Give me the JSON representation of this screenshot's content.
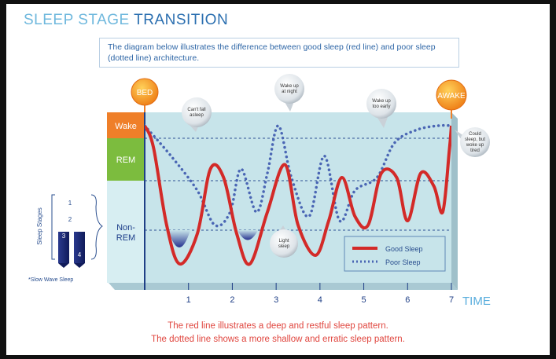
{
  "title": {
    "part1": "SLEEP STAGE",
    "part2": "TRANSITION"
  },
  "description": "The diagram below illustrates the difference between good sleep (red line) and poor sleep (dotted line) architecture.",
  "footer": {
    "line1": "The red line illustrates a deep and restful sleep pattern.",
    "line2": "The dotted line shows a more shallow and erratic sleep pattern."
  },
  "sidebar": {
    "heading": "Sleep Stages",
    "stages": [
      "1",
      "2",
      "3",
      "4"
    ],
    "note": "*Slow Wave Sleep"
  },
  "markers": {
    "bed": "BED",
    "awake": "AWAKE"
  },
  "bubbles": {
    "cant_fall_asleep": [
      "Can't fall",
      "asleep"
    ],
    "wake_up_night": [
      "Wake up",
      "at night"
    ],
    "wake_up_early": [
      "Wake up",
      "too early"
    ],
    "light_sleep": [
      "Light",
      "sleep"
    ],
    "could_sleep": [
      "Could",
      "sleep, but",
      "woke up",
      "tired"
    ]
  },
  "colors": {
    "good": "#d32a28",
    "poor": "#4a66b4",
    "plot_bg": "#c7e4ea",
    "wake_band": "#ef7f29",
    "rem_band": "#7cbc3e",
    "nonrem_band": "#d7eef2",
    "axis": "#1f3f86",
    "time_label": "#5aaedd"
  },
  "chart_data": {
    "type": "line",
    "xlabel": "TIME",
    "x_ticks": [
      1,
      2,
      3,
      4,
      5,
      6,
      7
    ],
    "xlim": [
      0,
      7
    ],
    "y_categories": [
      "Wake",
      "REM",
      "Non-REM"
    ],
    "ylabel": "",
    "series": [
      {
        "name": "Good Sleep",
        "style": "solid",
        "points": [
          [
            0.0,
            0.0
          ],
          [
            0.2,
            0.5
          ],
          [
            0.5,
            2.3
          ],
          [
            0.8,
            3.2
          ],
          [
            1.2,
            2.5
          ],
          [
            1.5,
            1.0
          ],
          [
            1.8,
            1.2
          ],
          [
            2.1,
            2.5
          ],
          [
            2.4,
            3.2
          ],
          [
            2.8,
            2.0
          ],
          [
            3.2,
            0.9
          ],
          [
            3.5,
            2.3
          ],
          [
            3.9,
            3.0
          ],
          [
            4.2,
            2.2
          ],
          [
            4.5,
            1.2
          ],
          [
            4.8,
            2.1
          ],
          [
            5.1,
            2.3
          ],
          [
            5.4,
            1.1
          ],
          [
            5.75,
            1.2
          ],
          [
            6.0,
            2.2
          ],
          [
            6.3,
            1.1
          ],
          [
            6.6,
            1.4
          ],
          [
            6.8,
            2.0
          ],
          [
            6.95,
            0.6
          ],
          [
            7.0,
            0.0
          ]
        ]
      },
      {
        "name": "Poor Sleep",
        "style": "dotted",
        "points": [
          [
            0.0,
            0.0
          ],
          [
            0.6,
            0.7
          ],
          [
            1.2,
            1.5
          ],
          [
            1.6,
            2.3
          ],
          [
            1.95,
            2.0
          ],
          [
            2.2,
            1.0
          ],
          [
            2.55,
            2.0
          ],
          [
            2.8,
            1.1
          ],
          [
            3.05,
            0.0
          ],
          [
            3.35,
            1.2
          ],
          [
            3.75,
            2.1
          ],
          [
            4.1,
            0.7
          ],
          [
            4.45,
            2.2
          ],
          [
            4.8,
            1.5
          ],
          [
            5.3,
            1.2
          ],
          [
            5.7,
            0.4
          ],
          [
            6.2,
            0.1
          ],
          [
            6.7,
            0.0
          ],
          [
            7.0,
            0.0
          ]
        ]
      }
    ],
    "legend": {
      "placement": "bottom-right",
      "entries": [
        "Good Sleep",
        "Poor Sleep"
      ]
    }
  }
}
